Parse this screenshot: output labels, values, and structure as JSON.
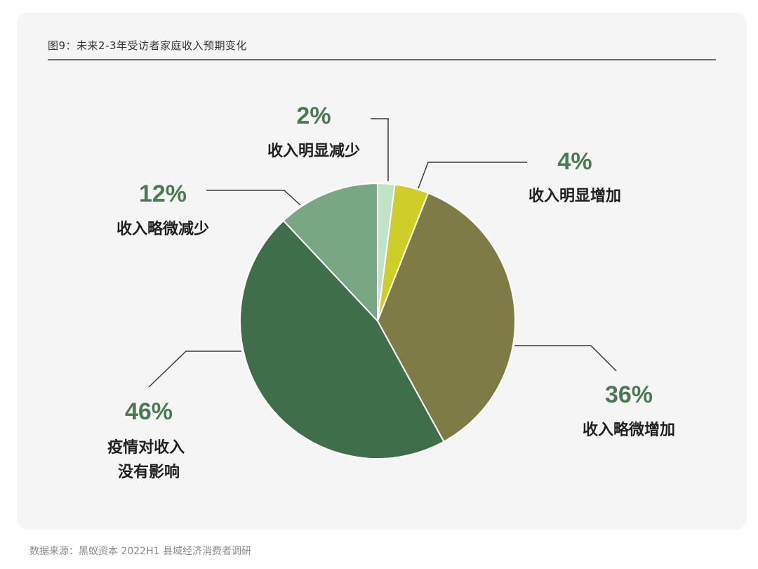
{
  "header": {
    "title": "图9：未来2-3年受访者家庭收入预期变化"
  },
  "footer": {
    "source": "数据来源：黑蚁资本 2022H1 县域经济消费者调研"
  },
  "chart_data": {
    "type": "pie",
    "title": "图9：未来2-3年受访者家庭收入预期变化",
    "slices": [
      {
        "label": "收入明显减少",
        "value": 2,
        "pct_text": "2%",
        "color": "#bfe3c4"
      },
      {
        "label": "收入明显增加",
        "value": 4,
        "pct_text": "4%",
        "color": "#cfcd27"
      },
      {
        "label": "收入略微增加",
        "value": 36,
        "pct_text": "36%",
        "color": "#7e7b46"
      },
      {
        "label": "疫情对收入没有影响",
        "value": 46,
        "pct_text": "46%",
        "color": "#3f6e4b"
      },
      {
        "label": "收入略微减少",
        "value": 12,
        "pct_text": "12%",
        "color": "#7aa783"
      }
    ],
    "label_color": "#4a7a51"
  }
}
